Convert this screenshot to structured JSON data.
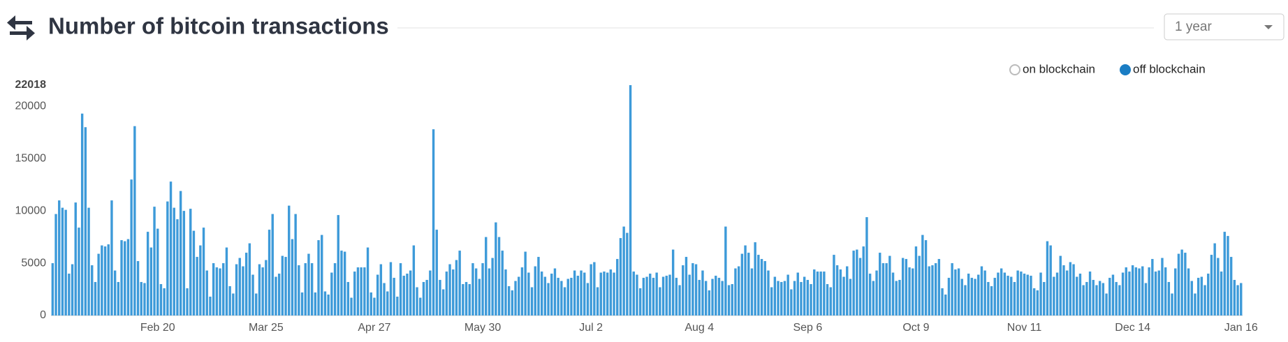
{
  "chart_data": {
    "type": "bar",
    "title": "Number of bitcoin transactions",
    "range_selector": "1 year",
    "legend": [
      {
        "name": "on blockchain",
        "selected": false,
        "color": "#bbbbbb"
      },
      {
        "name": "off blockchain",
        "selected": true,
        "color": "#1a7dc4"
      }
    ],
    "ylim": [
      0,
      22018
    ],
    "yticks": [
      0,
      5000,
      10000,
      15000,
      20000,
      22018
    ],
    "grid": false,
    "categories": [
      null,
      null,
      null,
      null,
      null,
      null,
      null,
      null,
      null,
      null,
      null,
      null,
      null,
      null,
      null,
      null,
      null,
      null,
      null,
      null,
      null,
      null,
      null,
      null,
      null,
      null,
      null,
      null,
      null,
      null,
      null,
      null,
      "Feb 20",
      null,
      null,
      null,
      null,
      null,
      null,
      null,
      null,
      null,
      null,
      null,
      null,
      null,
      null,
      null,
      null,
      null,
      null,
      null,
      null,
      null,
      null,
      null,
      null,
      null,
      null,
      null,
      null,
      null,
      null,
      null,
      null,
      "Mar 25",
      null,
      null,
      null,
      null,
      null,
      null,
      null,
      null,
      null,
      null,
      null,
      null,
      null,
      null,
      null,
      null,
      null,
      null,
      null,
      null,
      null,
      null,
      null,
      null,
      null,
      null,
      null,
      null,
      null,
      null,
      null,
      null,
      "Apr 27",
      null,
      null,
      null,
      null,
      null,
      null,
      null,
      null,
      null,
      null,
      null,
      null,
      null,
      null,
      null,
      null,
      null,
      null,
      null,
      null,
      null,
      null,
      null,
      null,
      null,
      null,
      null,
      null,
      null,
      null,
      null,
      null,
      "May 30",
      null,
      null,
      null,
      null,
      null,
      null,
      null,
      null,
      null,
      null,
      null,
      null,
      null,
      null,
      null,
      null,
      null,
      null,
      null,
      null,
      null,
      null,
      null,
      null,
      null,
      null,
      null,
      null,
      null,
      null,
      null,
      null,
      "Jul 2",
      null,
      null,
      null,
      null,
      null,
      null,
      null,
      null,
      null,
      null,
      null,
      null,
      null,
      null,
      null,
      null,
      null,
      null,
      null,
      null,
      null,
      null,
      null,
      null,
      null,
      null,
      null,
      null,
      null,
      null,
      null,
      null,
      "Aug 4",
      null,
      null,
      null,
      null,
      null,
      null,
      null,
      null,
      null,
      null,
      null,
      null,
      null,
      null,
      null,
      null,
      null,
      null,
      null,
      null,
      null,
      null,
      null,
      null,
      null,
      null,
      null,
      null,
      null,
      null,
      null,
      null,
      "Sep 6",
      null,
      null,
      null,
      null,
      null,
      null,
      null,
      null,
      null,
      null,
      null,
      null,
      null,
      null,
      null,
      null,
      null,
      null,
      null,
      null,
      null,
      null,
      null,
      null,
      null,
      null,
      null,
      null,
      null,
      null,
      null,
      null,
      "Oct 9",
      null,
      null,
      null,
      null,
      null,
      null,
      null,
      null,
      null,
      null,
      null,
      null,
      null,
      null,
      null,
      null,
      null,
      null,
      null,
      null,
      null,
      null,
      null,
      null,
      null,
      null,
      null,
      null,
      null,
      null,
      null,
      null,
      "Nov 11",
      null,
      null,
      null,
      null,
      null,
      null,
      null,
      null,
      null,
      null,
      null,
      null,
      null,
      null,
      null,
      null,
      null,
      null,
      null,
      null,
      null,
      null,
      null,
      null,
      null,
      null,
      null,
      null,
      null,
      null,
      null,
      null,
      "Dec 14",
      null,
      null,
      null,
      null,
      null,
      null,
      null,
      null,
      null,
      null,
      null,
      null,
      null,
      null,
      null,
      null,
      null,
      null,
      null,
      null,
      null,
      null,
      null,
      null,
      null,
      null,
      null,
      null,
      null,
      null,
      null,
      null,
      "Jan 16"
    ],
    "series": [
      {
        "color": "#3d9ad9",
        "values": [
          5000,
          9700,
          11000,
          10300,
          10100,
          4000,
          4900,
          10800,
          8400,
          19300,
          18000,
          10300,
          4800,
          3200,
          5900,
          6700,
          6600,
          6800,
          11000,
          4300,
          3200,
          7200,
          7100,
          7300,
          13000,
          18100,
          5200,
          3200,
          3100,
          8000,
          6500,
          10400,
          8300,
          3000,
          2600,
          10900,
          12800,
          10300,
          9200,
          11900,
          10000,
          2600,
          10200,
          8100,
          5600,
          6700,
          8400,
          4300,
          1800,
          5000,
          4600,
          4500,
          5000,
          6500,
          2800,
          2100,
          4900,
          5500,
          4700,
          6000,
          6900,
          3900,
          2100,
          4900,
          4600,
          5300,
          8200,
          9700,
          3700,
          4000,
          5700,
          5600,
          10500,
          7300,
          9700,
          4800,
          2200,
          5000,
          5900,
          5000,
          2200,
          7200,
          7700,
          2300,
          2000,
          4100,
          5000,
          9600,
          6200,
          6100,
          3200,
          1700,
          4200,
          4600,
          4600,
          4600,
          6500,
          2200,
          1700,
          3900,
          4900,
          3100,
          2300,
          5100,
          3600,
          1800,
          5000,
          3800,
          4000,
          4300,
          6700,
          2700,
          1700,
          3200,
          3400,
          4300,
          17800,
          8200,
          3400,
          2500,
          4200,
          4900,
          4400,
          5300,
          6200,
          3000,
          3200,
          3000,
          5000,
          4500,
          3500,
          5000,
          7500,
          4500,
          5500,
          8900,
          7500,
          6200,
          4400,
          2800,
          2400,
          3300,
          3700,
          4600,
          6100,
          4100,
          2700,
          4700,
          5600,
          4200,
          3700,
          3100,
          4000,
          4500,
          3600,
          3300,
          2700,
          3500,
          3600,
          4300,
          3800,
          4300,
          4100,
          3100,
          4900,
          5100,
          2700,
          4100,
          4200,
          4100,
          4400,
          4100,
          5400,
          7400,
          8500,
          7900,
          22018,
          4200,
          3900,
          2600,
          3600,
          3700,
          4000,
          3600,
          4100,
          2700,
          3700,
          3800,
          3900,
          6300,
          3600,
          2900,
          4800,
          5600,
          3900,
          5000,
          4900,
          3400,
          4300,
          3300,
          2400,
          3500,
          3800,
          3600,
          3300,
          8500,
          2900,
          3000,
          4500,
          4700,
          5900,
          6700,
          6000,
          4500,
          7000,
          5800,
          5400,
          5200,
          4300,
          2700,
          3700,
          3300,
          3200,
          3300,
          3900,
          2500,
          3300,
          4100,
          3200,
          3700,
          3400,
          3000,
          4400,
          4200,
          4200,
          4200,
          3000,
          2700,
          5800,
          4800,
          4400,
          3700,
          4700,
          3500,
          6200,
          6300,
          5500,
          6600,
          9400,
          4000,
          3300,
          4300,
          6000,
          5000,
          5000,
          5700,
          4100,
          3300,
          3400,
          5500,
          5400,
          4600,
          4500,
          6600,
          5700,
          7700,
          7200,
          4700,
          4800,
          5000,
          5400,
          2600,
          2000,
          3600,
          5000,
          4400,
          4500,
          3500,
          2900,
          4000,
          3600,
          3500,
          3900,
          4700,
          4300,
          3200,
          2800,
          3600,
          4100,
          4500,
          4100,
          3800,
          3700,
          3200,
          4300,
          4200,
          4000,
          3900,
          3800,
          2600,
          2400,
          4100,
          3200,
          7100,
          6700,
          3700,
          4100,
          5700,
          4800,
          4300,
          5100,
          4900,
          3700,
          4000,
          2900,
          3200,
          4200,
          3400,
          2900,
          3300,
          3100,
          2100,
          3600,
          3900,
          3200,
          2900,
          4100,
          4600,
          4200,
          4800,
          4600,
          4500,
          4700,
          3100,
          4600,
          5400,
          4200,
          4300,
          5500,
          4600,
          3200,
          2100,
          4500,
          5900,
          6300,
          6000,
          4500,
          3300,
          2100,
          3600,
          3700,
          2900,
          4000,
          5800,
          6900,
          5500,
          4200,
          8000,
          7600,
          5600,
          3400,
          2900,
          3100
        ]
      }
    ]
  }
}
